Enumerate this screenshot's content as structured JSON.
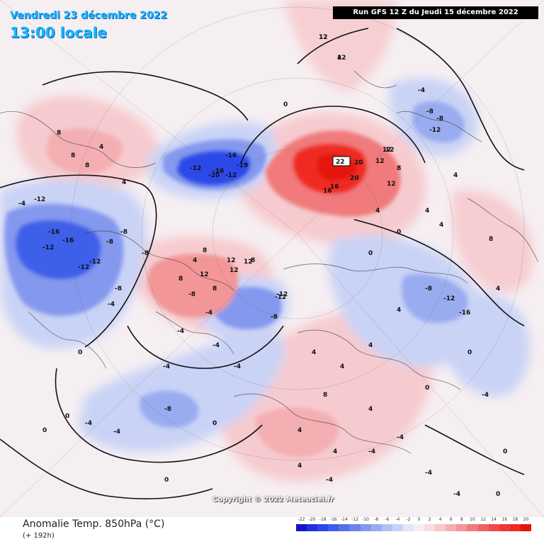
{
  "map": {
    "valid_date": "Vendredi 23 décembre 2022",
    "local_time": "13:00 locale",
    "run_info": "Run GFS 12 Z du Jeudi 15 décembre 2022",
    "copyright": "Copyright © 2022 Meteociel.fr",
    "parameter": "Anomalie Temp. 850hPa (°C)",
    "lead_time": "(+ 192h)",
    "colors": {
      "cold_strong": "#1f2fe0",
      "cold_mid": "#5f76e8",
      "cold_light": "#c9d3f6",
      "neutral": "#f6eff2",
      "warm_light": "#f6c7cb",
      "warm_mid": "#f07a7c",
      "warm_strong": "#ef2b24"
    },
    "labels": [
      {
        "text": "-16"
      },
      {
        "text": "-16"
      },
      {
        "text": "-12"
      },
      {
        "text": "-12"
      },
      {
        "text": "-12"
      },
      {
        "text": "-8"
      },
      {
        "text": "-8"
      },
      {
        "text": "-4"
      },
      {
        "text": "-19"
      },
      {
        "text": "-16"
      },
      {
        "text": "-20"
      },
      {
        "text": "-16"
      },
      {
        "text": "-12"
      },
      {
        "text": "-12"
      },
      {
        "text": "-12"
      },
      {
        "text": "-4"
      },
      {
        "text": "-8"
      },
      {
        "text": "-8"
      },
      {
        "text": "-12"
      },
      {
        "text": "-8"
      },
      {
        "text": "-8"
      },
      {
        "text": "-4"
      },
      {
        "text": "-12"
      },
      {
        "text": "-8"
      },
      {
        "text": "-16"
      },
      {
        "text": "-8"
      },
      {
        "text": "-12"
      },
      {
        "text": "-8"
      },
      {
        "text": "-8"
      },
      {
        "text": "12"
      },
      {
        "text": "12"
      },
      {
        "text": "8"
      },
      {
        "text": "8"
      },
      {
        "text": "4"
      },
      {
        "text": "12"
      },
      {
        "text": "8"
      },
      {
        "text": "4"
      },
      {
        "text": "4"
      },
      {
        "text": "4"
      },
      {
        "text": "4"
      },
      {
        "text": "4"
      },
      {
        "text": "8"
      },
      {
        "text": "8"
      },
      {
        "text": "8"
      },
      {
        "text": "4"
      },
      {
        "text": "8"
      },
      {
        "text": "4"
      },
      {
        "text": "12"
      },
      {
        "text": "4"
      },
      {
        "text": "4"
      },
      {
        "text": "4"
      },
      {
        "text": "4"
      },
      {
        "text": "8"
      },
      {
        "text": "-4"
      },
      {
        "text": "-4"
      },
      {
        "text": "-4"
      },
      {
        "text": "-4"
      },
      {
        "text": "-4"
      },
      {
        "text": "-4"
      },
      {
        "text": "-4"
      },
      {
        "text": "-4"
      },
      {
        "text": "-4"
      },
      {
        "text": "-4"
      },
      {
        "text": "-4"
      },
      {
        "text": "-4"
      },
      {
        "text": "8"
      },
      {
        "text": "4"
      },
      {
        "text": "4"
      },
      {
        "text": "8"
      },
      {
        "text": "12"
      },
      {
        "text": "4"
      },
      {
        "text": "12"
      },
      {
        "text": "-12"
      },
      {
        "text": "4"
      },
      {
        "text": "4"
      },
      {
        "text": "-4"
      },
      {
        "text": "0"
      },
      {
        "text": "0"
      },
      {
        "text": "0"
      },
      {
        "text": "0"
      },
      {
        "text": "0"
      },
      {
        "text": "0"
      },
      {
        "text": "0"
      },
      {
        "text": "0"
      },
      {
        "text": "0"
      },
      {
        "text": "0"
      },
      {
        "text": "0"
      },
      {
        "text": "0"
      }
    ],
    "max_labels": [
      {
        "text": "12"
      },
      {
        "text": "12"
      },
      {
        "text": "20"
      },
      {
        "text": "16"
      },
      {
        "text": "20"
      },
      {
        "text": "12"
      },
      {
        "text": "16"
      },
      {
        "text": "12"
      },
      {
        "text": "12"
      }
    ],
    "max_value": "22"
  },
  "legend": {
    "ticks": [
      "-22",
      "-20",
      "-18",
      "-16",
      "-14",
      "-12",
      "-10",
      "-8",
      "-6",
      "-4",
      "-2",
      "0",
      "2",
      "4",
      "6",
      "8",
      "10",
      "12",
      "14",
      "16",
      "18",
      "20"
    ],
    "colors": [
      "#1812c8",
      "#1f2fe0",
      "#2b48e8",
      "#3e5ee9",
      "#5270ea",
      "#6a84ec",
      "#8498ee",
      "#9aacf0",
      "#b2c0f3",
      "#c9d3f6",
      "#e1e6f9",
      "#f6eff2",
      "#f8dde1",
      "#f6c7cb",
      "#f4afb3",
      "#f29698",
      "#f07a7c",
      "#ef6163",
      "#ee4a4a",
      "#ec3a36",
      "#ef2b24",
      "#e4140c"
    ]
  }
}
